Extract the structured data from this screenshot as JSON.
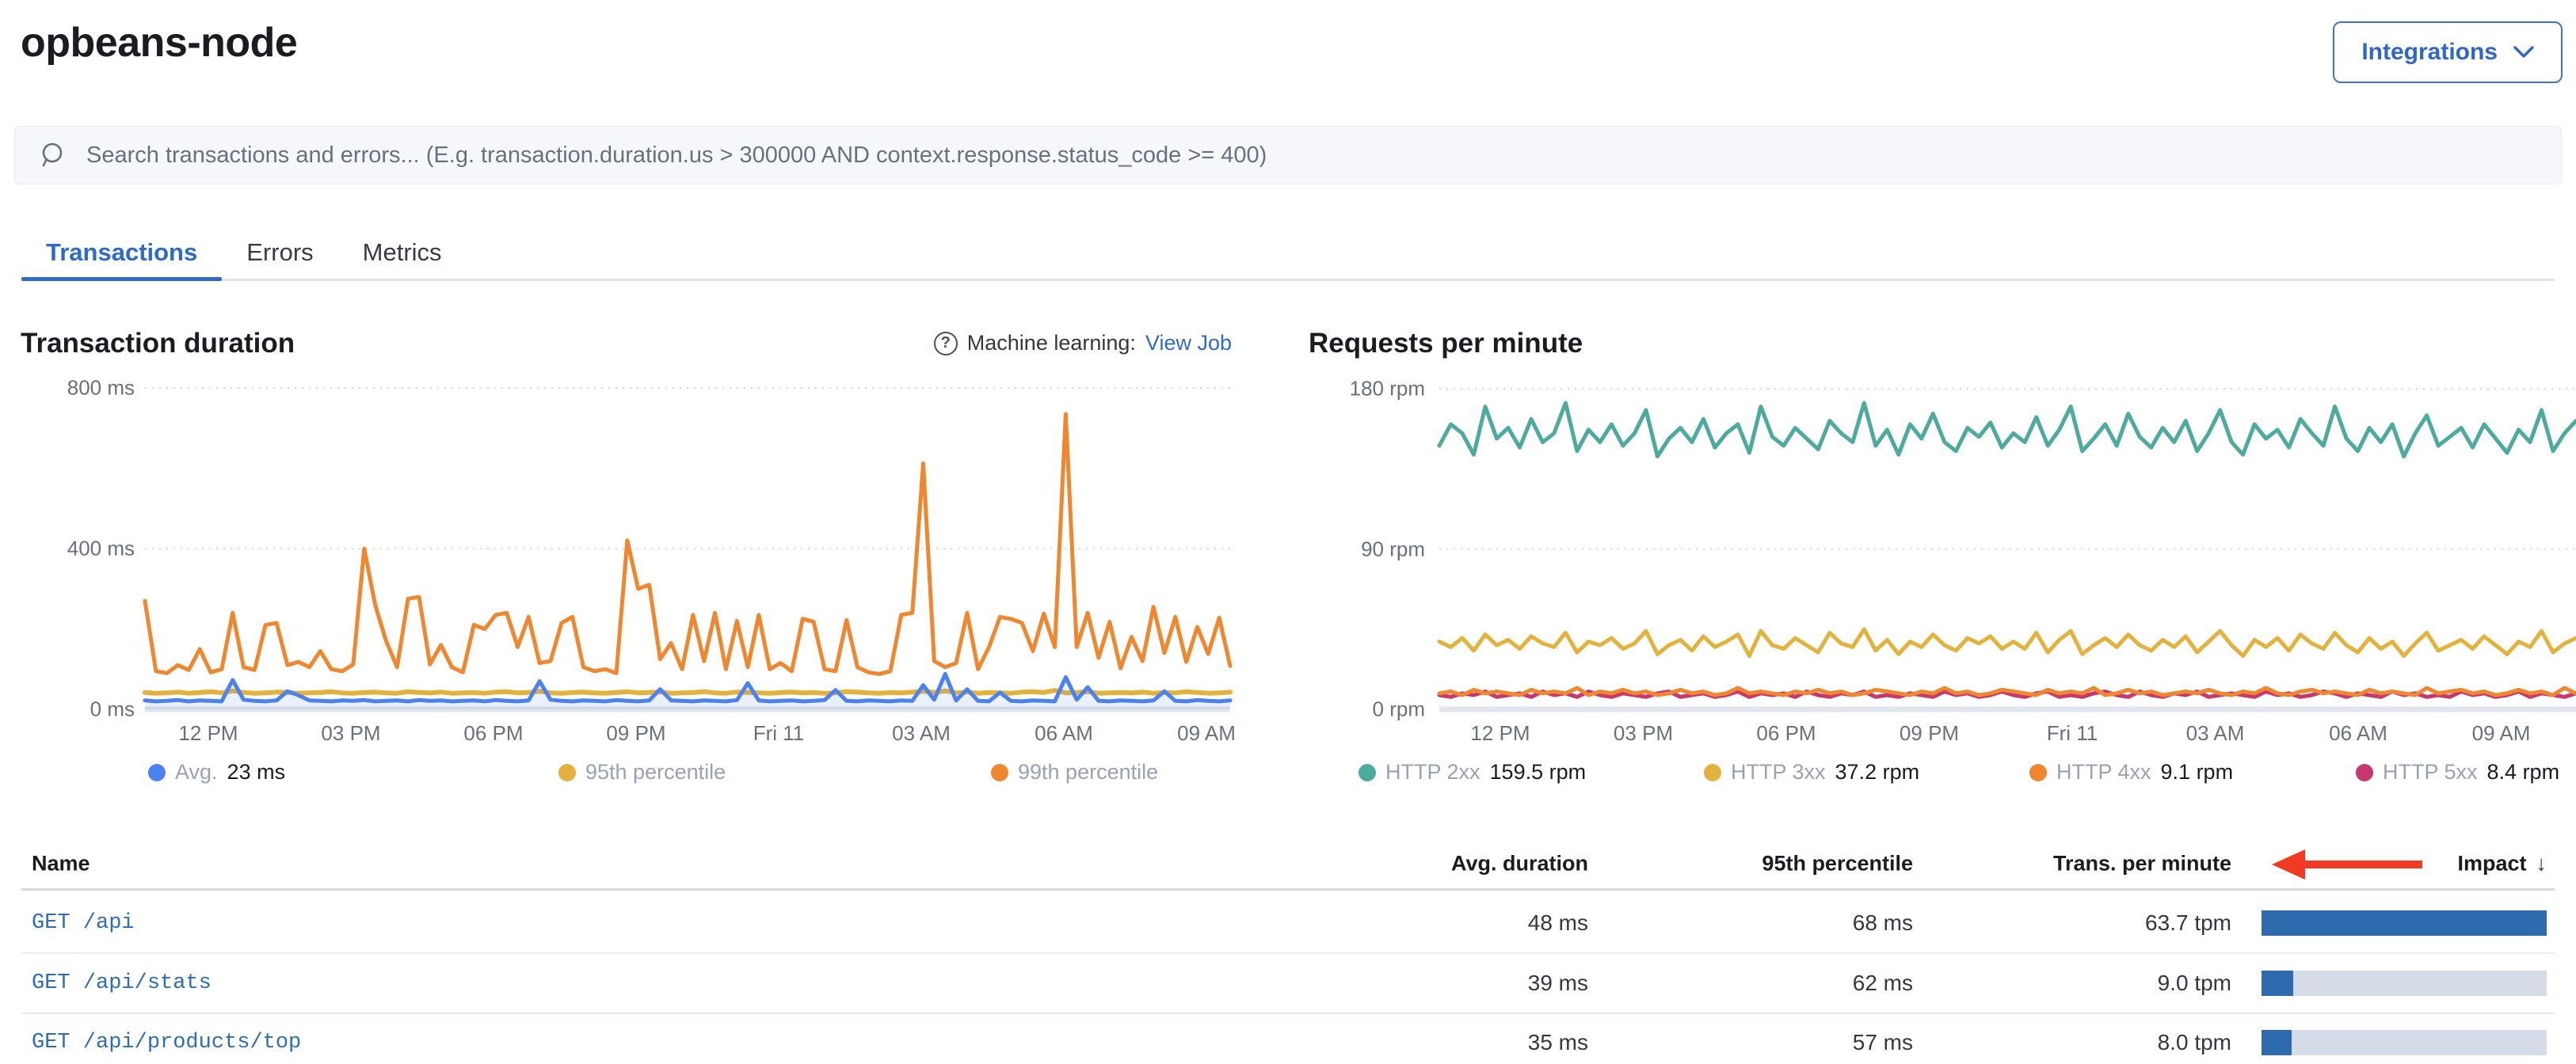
{
  "header": {
    "title": "opbeans-node",
    "integrations_label": "Integrations"
  },
  "search": {
    "placeholder": "Search transactions and errors... (E.g. transaction.duration.us > 300000 AND context.response.status_code >= 400)"
  },
  "tabs": [
    {
      "label": "Transactions",
      "active": true
    },
    {
      "label": "Errors",
      "active": false
    },
    {
      "label": "Metrics",
      "active": false
    }
  ],
  "colors": {
    "accent_blue": "#2e6bc9",
    "avg_line": "#4c81f2",
    "p95_line": "#e2b23c",
    "p99_line": "#f0862d",
    "http2xx": "#4dab9e",
    "http3xx": "#e2b23c",
    "http4xx": "#f0862d",
    "http5xx": "#ca366f",
    "impact_bar": "#2d6bae",
    "annotation_red": "#f03a21"
  },
  "chart_data": {
    "duration": {
      "type": "line",
      "title": "Transaction duration",
      "ml_label": "Machine learning:",
      "ml_link": "View Job",
      "ylim": [
        0,
        800
      ],
      "y_ticks": [
        "800 ms",
        "400 ms",
        "0 ms"
      ],
      "x_ticks": [
        "12 PM",
        "03 PM",
        "06 PM",
        "09 PM",
        "Fri 11",
        "03 AM",
        "06 AM",
        "09 AM"
      ],
      "legend": [
        {
          "label": "Avg.",
          "value": "23 ms",
          "color": "#4c81f2"
        },
        {
          "label": "95th percentile",
          "value": "",
          "color": "#e2b23c"
        },
        {
          "label": "99th percentile",
          "value": "",
          "color": "#f0862d"
        }
      ],
      "series": [
        {
          "name": "99th percentile",
          "color": "#f0862d",
          "width": 5,
          "fill": false,
          "values": [
            270,
            95,
            90,
            110,
            98,
            150,
            92,
            100,
            240,
            105,
            98,
            210,
            215,
            110,
            118,
            105,
            145,
            100,
            95,
            112,
            400,
            260,
            170,
            105,
            275,
            280,
            112,
            160,
            105,
            92,
            210,
            200,
            235,
            240,
            155,
            230,
            115,
            120,
            215,
            230,
            105,
            95,
            100,
            90,
            420,
            300,
            310,
            125,
            165,
            100,
            235,
            120,
            240,
            100,
            220,
            105,
            235,
            100,
            115,
            95,
            225,
            218,
            100,
            95,
            222,
            105,
            92,
            88,
            95,
            235,
            240,
            612,
            120,
            105,
            115,
            240,
            100,
            155,
            230,
            225,
            215,
            145,
            238,
            155,
            735,
            155,
            240,
            128,
            218,
            102,
            180,
            120,
            255,
            140,
            230,
            118,
            205,
            138,
            228,
            108
          ]
        },
        {
          "name": "95th percentile",
          "color": "#e2b23c",
          "width": 6,
          "fill": false,
          "values": [
            42,
            40,
            41,
            43,
            40,
            42,
            44,
            41,
            46,
            42,
            40,
            41,
            43,
            42,
            40,
            41,
            42,
            44,
            41,
            40,
            42,
            43,
            41,
            40,
            44,
            42,
            41,
            43,
            40,
            41,
            42,
            40,
            43,
            44,
            41,
            42,
            45,
            41,
            40,
            42,
            43,
            41,
            40,
            42,
            44,
            41,
            42,
            43,
            40,
            41,
            42,
            44,
            41,
            40,
            43,
            42,
            41,
            40,
            42,
            43,
            41,
            42,
            40,
            41,
            44,
            43,
            41,
            40,
            42,
            41,
            43,
            45,
            42,
            46,
            41,
            43,
            40,
            42,
            41,
            40,
            43,
            44,
            42,
            47,
            41,
            42,
            44,
            40,
            41,
            42,
            41,
            43,
            40,
            42,
            41,
            44,
            42,
            40,
            41,
            43
          ]
        },
        {
          "name": "Avg.",
          "color": "#4c81f2",
          "width": 5,
          "fill": true,
          "values": [
            22,
            20,
            21,
            23,
            20,
            22,
            21,
            20,
            73,
            24,
            21,
            20,
            22,
            45,
            35,
            22,
            21,
            20,
            22,
            21,
            23,
            20,
            21,
            22,
            20,
            23,
            21,
            22,
            20,
            21,
            22,
            20,
            23,
            21,
            20,
            22,
            70,
            24,
            21,
            20,
            22,
            21,
            20,
            23,
            21,
            20,
            22,
            50,
            22,
            21,
            20,
            22,
            21,
            20,
            23,
            65,
            22,
            20,
            21,
            22,
            20,
            21,
            23,
            48,
            21,
            20,
            22,
            21,
            20,
            22,
            21,
            60,
            24,
            88,
            22,
            50,
            21,
            20,
            42,
            21,
            20,
            22,
            21,
            20,
            80,
            24,
            55,
            21,
            20,
            22,
            21,
            20,
            22,
            45,
            21,
            20,
            23,
            21,
            20,
            22
          ]
        }
      ]
    },
    "rpm": {
      "type": "line",
      "title": "Requests per minute",
      "ylim": [
        0,
        180
      ],
      "y_ticks": [
        "180 rpm",
        "90 rpm",
        "0 rpm"
      ],
      "x_ticks": [
        "12 PM",
        "03 PM",
        "06 PM",
        "09 PM",
        "Fri 11",
        "03 AM",
        "06 AM",
        "09 AM"
      ],
      "legend": [
        {
          "label": "HTTP 2xx",
          "value": "159.5 rpm",
          "color": "#4dab9e"
        },
        {
          "label": "HTTP 3xx",
          "value": "37.2 rpm",
          "color": "#e2b23c"
        },
        {
          "label": "HTTP 4xx",
          "value": "9.1 rpm",
          "color": "#f0862d"
        },
        {
          "label": "HTTP 5xx",
          "value": "8.4 rpm",
          "color": "#ca366f"
        }
      ],
      "series": [
        {
          "name": "HTTP 2xx",
          "color": "#4dab9e",
          "width": 5,
          "fill": false,
          "values": [
            148,
            160,
            155,
            143,
            170,
            152,
            158,
            147,
            163,
            150,
            155,
            172,
            145,
            157,
            150,
            160,
            148,
            155,
            168,
            142,
            152,
            158,
            150,
            163,
            147,
            155,
            160,
            144,
            170,
            153,
            148,
            158,
            152,
            146,
            162,
            155,
            150,
            172,
            148,
            157,
            143,
            160,
            152,
            166,
            150,
            145,
            158,
            153,
            161,
            147,
            155,
            150,
            164,
            148,
            157,
            170,
            145,
            152,
            160,
            148,
            166,
            153,
            147,
            158,
            150,
            162,
            145,
            155,
            168,
            150,
            143,
            160,
            152,
            157,
            147,
            163,
            155,
            148,
            170,
            152,
            145,
            158,
            150,
            160,
            142,
            155,
            165,
            148,
            153,
            158,
            147,
            160,
            152,
            144,
            157,
            150,
            168,
            145,
            155,
            162
          ]
        },
        {
          "name": "HTTP 3xx",
          "color": "#e2b23c",
          "width": 5,
          "fill": false,
          "values": [
            38,
            35,
            40,
            33,
            42,
            36,
            39,
            34,
            41,
            37,
            35,
            43,
            32,
            38,
            36,
            40,
            34,
            37,
            44,
            31,
            36,
            39,
            33,
            41,
            35,
            38,
            42,
            30,
            44,
            36,
            34,
            40,
            36,
            32,
            43,
            37,
            35,
            45,
            33,
            39,
            31,
            38,
            35,
            42,
            36,
            33,
            40,
            37,
            41,
            34,
            38,
            34,
            43,
            32,
            39,
            44,
            31,
            36,
            40,
            35,
            42,
            36,
            33,
            39,
            35,
            41,
            32,
            38,
            44,
            36,
            30,
            39,
            35,
            40,
            33,
            42,
            37,
            34,
            43,
            36,
            32,
            40,
            34,
            38,
            30,
            37,
            43,
            33,
            36,
            39,
            34,
            41,
            36,
            31,
            38,
            35,
            44,
            32,
            37,
            40
          ]
        },
        {
          "name": "HTTP 5xx",
          "color": "#ca366f",
          "width": 5,
          "fill": false,
          "values": [
            8,
            7,
            9,
            8,
            10,
            7,
            8,
            9,
            7,
            10,
            8,
            9,
            7,
            10,
            8,
            7,
            9,
            8,
            7,
            9,
            10,
            7,
            8,
            9,
            7,
            8,
            10,
            7,
            9,
            8,
            9,
            7,
            10,
            8,
            7,
            9,
            8,
            10,
            7,
            8,
            7,
            9,
            8,
            7,
            10,
            8,
            9,
            7,
            8,
            10,
            8,
            7,
            9,
            10,
            7,
            8,
            7,
            9,
            10,
            8,
            7,
            10,
            8,
            7,
            9,
            8,
            10,
            7,
            8,
            9,
            8,
            7,
            10,
            8,
            9,
            7,
            8,
            10,
            9,
            7,
            9,
            8,
            7,
            10,
            8,
            9,
            7,
            8,
            7,
            10,
            8,
            9,
            7,
            8,
            10,
            7,
            9,
            8,
            7,
            9
          ]
        },
        {
          "name": "HTTP 4xx",
          "color": "#f0862d",
          "width": 5,
          "fill": false,
          "values": [
            9,
            10,
            8,
            11,
            9,
            10,
            9,
            8,
            11,
            9,
            10,
            9,
            12,
            8,
            10,
            9,
            11,
            9,
            10,
            8,
            9,
            11,
            9,
            10,
            8,
            9,
            12,
            9,
            10,
            9,
            8,
            10,
            9,
            11,
            9,
            10,
            8,
            9,
            11,
            10,
            9,
            8,
            10,
            9,
            12,
            9,
            10,
            8,
            9,
            11,
            10,
            9,
            8,
            11,
            9,
            10,
            9,
            12,
            8,
            9,
            11,
            9,
            10,
            8,
            9,
            10,
            9,
            11,
            9,
            8,
            10,
            9,
            12,
            9,
            8,
            10,
            11,
            9,
            10,
            9,
            8,
            11,
            9,
            10,
            9,
            8,
            12,
            9,
            10,
            11,
            9,
            10,
            8,
            9,
            11,
            9,
            10,
            8,
            12,
            9
          ]
        }
      ]
    }
  },
  "table": {
    "col_name": "Name",
    "col_avg": "Avg. duration",
    "col_p95": "95th percentile",
    "col_tpm": "Trans. per minute",
    "col_impact": "Impact",
    "sort_icon": "↓",
    "rows": [
      {
        "name": "GET /api",
        "avg": "48 ms",
        "p95": "68 ms",
        "tpm": "63.7 tpm",
        "impact": 1.0
      },
      {
        "name": "GET /api/stats",
        "avg": "39 ms",
        "p95": "62 ms",
        "tpm": "9.0 tpm",
        "impact": 0.11
      },
      {
        "name": "GET /api/products/top",
        "avg": "35 ms",
        "p95": "57 ms",
        "tpm": "8.0 tpm",
        "impact": 0.105
      }
    ]
  }
}
